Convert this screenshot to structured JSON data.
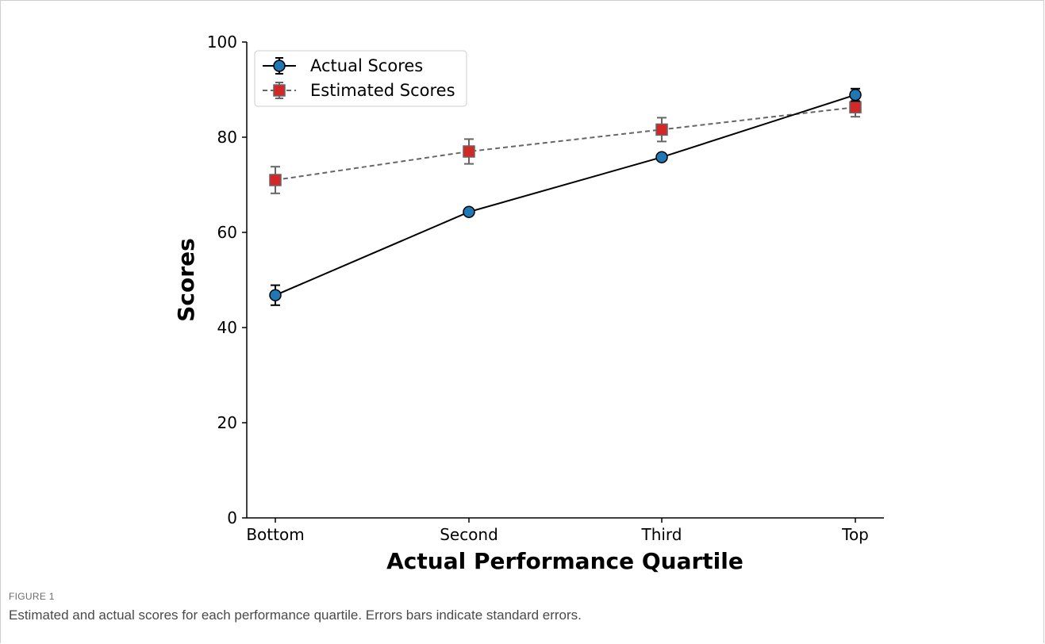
{
  "figure": {
    "label": "FIGURE 1",
    "caption": "Estimated and actual scores for each performance quartile. Errors bars indicate standard errors."
  },
  "chart_data": {
    "type": "line",
    "title": "",
    "xlabel": "Actual Performance Quartile",
    "ylabel": "Scores",
    "categories": [
      "Bottom",
      "Second",
      "Third",
      "Top"
    ],
    "ylim": [
      0,
      100
    ],
    "yticks": [
      0,
      20,
      40,
      60,
      80,
      100
    ],
    "grid": false,
    "legend": "top-left",
    "series": [
      {
        "name": "Actual Scores",
        "values": [
          46.8,
          64.3,
          75.8,
          88.9
        ],
        "errors": [
          2.1,
          0.6,
          0.6,
          1.3
        ],
        "color": "#1f77b4",
        "line_color": "#000000",
        "line_style": "solid",
        "marker": "circle"
      },
      {
        "name": "Estimated Scores",
        "values": [
          71.0,
          77.0,
          81.6,
          86.3
        ],
        "errors": [
          2.8,
          2.6,
          2.5,
          2.0
        ],
        "color": "#d62728",
        "line_color": "#666666",
        "line_style": "dashed",
        "marker": "square"
      }
    ]
  }
}
